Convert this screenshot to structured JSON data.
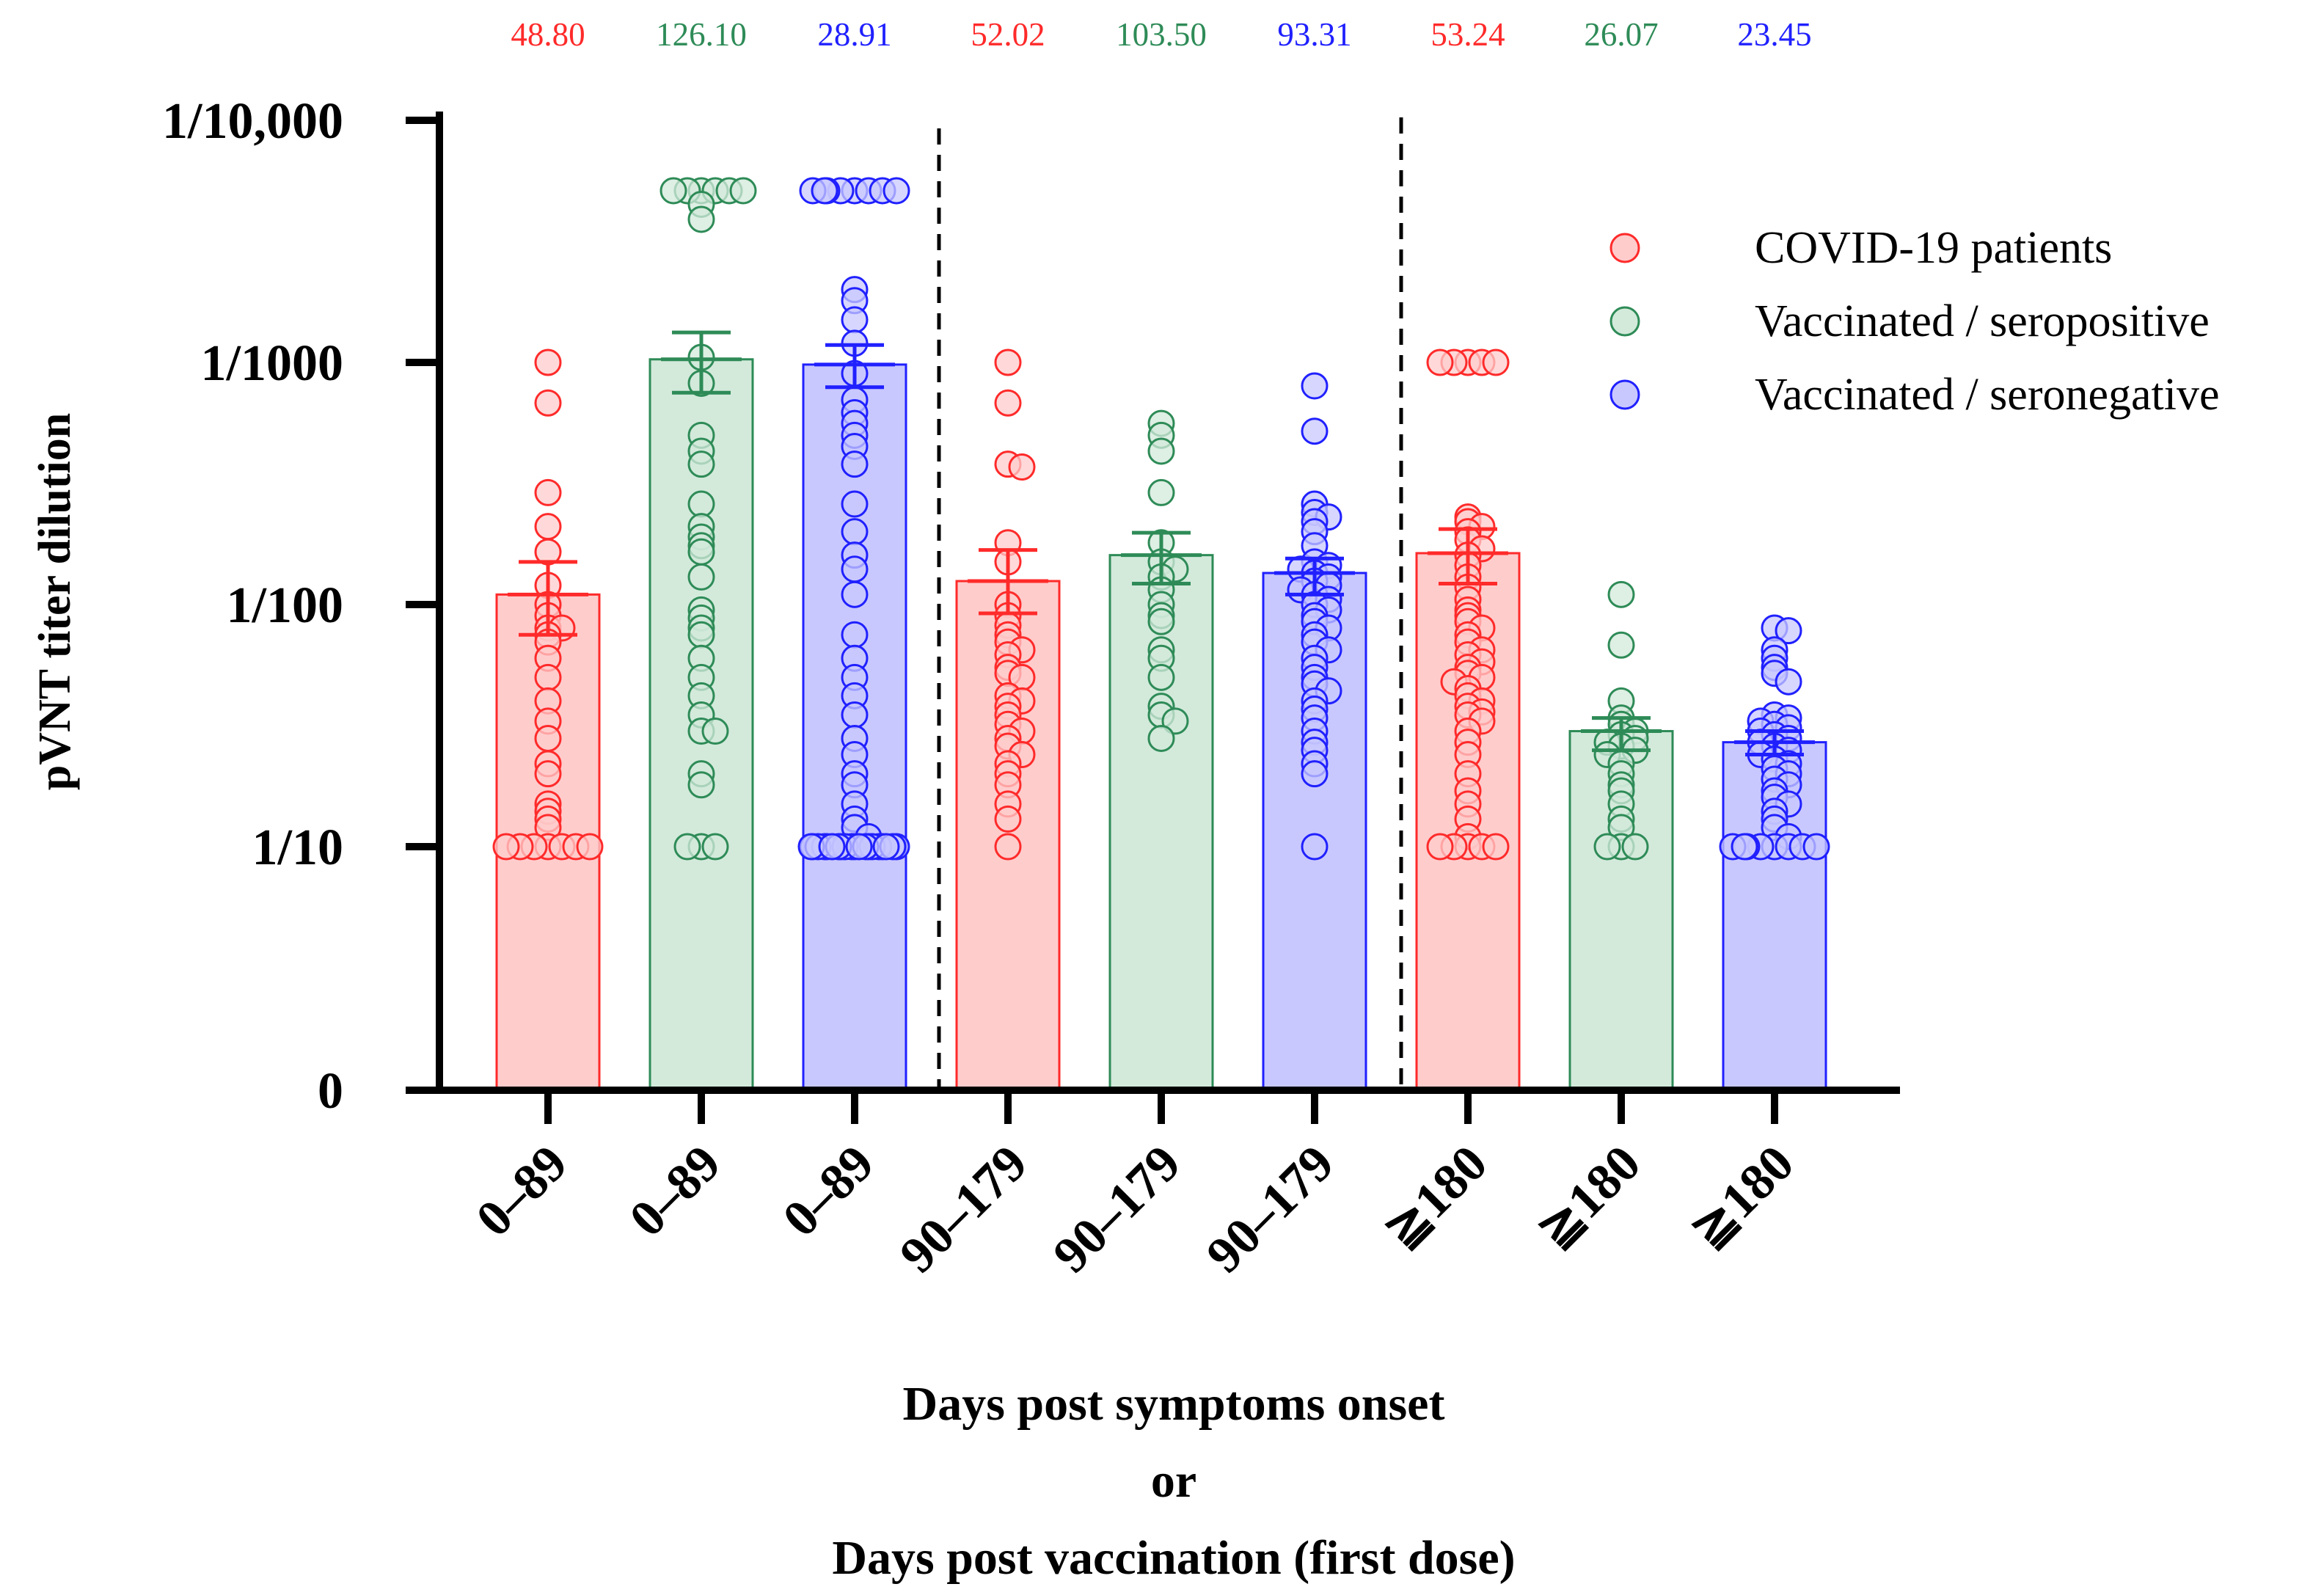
{
  "chart_data": {
    "type": "bar",
    "scale": "log",
    "ylabel": "pVNT titer dilution",
    "xlabel_lines": [
      "Days post symptoms onset",
      "or",
      "Days post vaccination (first dose)"
    ],
    "yticks": [
      {
        "value": 0,
        "label": "0"
      },
      {
        "value": 10,
        "label": "1/10"
      },
      {
        "value": 100,
        "label": "1/100"
      },
      {
        "value": 1000,
        "label": "1/1000"
      },
      {
        "value": 10000,
        "label": "1/10,000"
      }
    ],
    "colors": {
      "covid": {
        "stroke": "#ff2a2a",
        "fill": "#ffcccc"
      },
      "seropositive": {
        "stroke": "#2e8b57",
        "fill": "#d3eadb"
      },
      "seronegative": {
        "stroke": "#2020ff",
        "fill": "#c8c8ff"
      }
    },
    "legend": [
      {
        "key": "covid",
        "label": "COVID-19 patients"
      },
      {
        "key": "seropositive",
        "label": "Vaccinated / seropositive"
      },
      {
        "key": "seronegative",
        "label": "Vaccinated / seronegative"
      }
    ],
    "groups": [
      {
        "category": "0–89",
        "series": "covid",
        "geomean_label": "48.80",
        "bar": 110,
        "err_low": 75,
        "err_high": 150,
        "points": [
          1000,
          680,
          290,
          210,
          165,
          120,
          100,
          90,
          80,
          80,
          75,
          70,
          60,
          50,
          40,
          33,
          28,
          22,
          20,
          15,
          14,
          13,
          12,
          10,
          10,
          10,
          10,
          10,
          10,
          10
        ]
      },
      {
        "category": "0–89",
        "series": "seropositive",
        "geomean_label": "126.10",
        "bar": 1030,
        "err_low": 750,
        "err_high": 1330,
        "points": [
          5120,
          5120,
          5120,
          5120,
          5120,
          5120,
          4500,
          3900,
          1050,
          820,
          500,
          430,
          380,
          260,
          210,
          190,
          175,
          165,
          130,
          95,
          88,
          80,
          75,
          60,
          50,
          42,
          35,
          30,
          30,
          20,
          18,
          10,
          10,
          10
        ]
      },
      {
        "category": "0–89",
        "series": "seronegative",
        "geomean_label": "28.91",
        "bar": 980,
        "err_low": 790,
        "err_high": 1180,
        "points": [
          5120,
          5120,
          5120,
          5120,
          5120,
          5120,
          5120,
          5120,
          2000,
          1800,
          1500,
          1200,
          900,
          700,
          620,
          560,
          500,
          450,
          380,
          260,
          200,
          160,
          140,
          110,
          75,
          60,
          50,
          42,
          35,
          28,
          24,
          20,
          18,
          15,
          13,
          12,
          11,
          10,
          10,
          10,
          10,
          10,
          10,
          10,
          10,
          10,
          10,
          10,
          10,
          10,
          10,
          10,
          10,
          10,
          10,
          10,
          10
        ]
      },
      {
        "category": "90–179",
        "series": "covid",
        "geomean_label": "52.02",
        "bar": 125,
        "err_low": 92,
        "err_high": 168,
        "points": [
          1000,
          680,
          380,
          370,
          180,
          150,
          100,
          90,
          82,
          75,
          70,
          65,
          62,
          55,
          52,
          50,
          42,
          40,
          38,
          35,
          32,
          30,
          28,
          26,
          24,
          22,
          20,
          18,
          15,
          13,
          10
        ]
      },
      {
        "category": "90–179",
        "series": "seropositive",
        "geomean_label": "103.50",
        "bar": 160,
        "err_low": 122,
        "err_high": 198,
        "points": [
          560,
          500,
          430,
          290,
          180,
          150,
          140,
          130,
          115,
          100,
          90,
          85,
          65,
          60,
          50,
          38,
          35,
          33,
          28
        ]
      },
      {
        "category": "90–179",
        "series": "seronegative",
        "geomean_label": "93.31",
        "bar": 135,
        "err_low": 110,
        "err_high": 155,
        "points": [
          800,
          520,
          260,
          240,
          230,
          220,
          200,
          175,
          150,
          145,
          140,
          135,
          130,
          125,
          120,
          115,
          110,
          105,
          100,
          95,
          90,
          85,
          80,
          75,
          70,
          65,
          60,
          55,
          50,
          47,
          44,
          40,
          37,
          34,
          30,
          27,
          25,
          22,
          20,
          10
        ]
      },
      {
        "category": "≧180",
        "series": "covid",
        "geomean_label": "53.24",
        "bar": 163,
        "err_low": 122,
        "err_high": 205,
        "points": [
          1000,
          1000,
          1000,
          1000,
          1000,
          230,
          220,
          210,
          200,
          185,
          170,
          160,
          145,
          130,
          118,
          105,
          95,
          90,
          85,
          80,
          75,
          70,
          65,
          62,
          58,
          55,
          52,
          50,
          48,
          45,
          42,
          40,
          38,
          36,
          35,
          33,
          30,
          27,
          24,
          20,
          17,
          15,
          13,
          11,
          10,
          10,
          10,
          10,
          10
        ]
      },
      {
        "category": "≧180",
        "series": "seropositive",
        "geomean_label": "26.07",
        "bar": 30,
        "err_low": 25,
        "err_high": 34,
        "points": [
          110,
          68,
          40,
          34,
          32,
          30,
          29,
          28,
          27,
          26,
          25,
          24,
          22,
          20,
          18,
          17,
          15,
          13,
          12,
          10,
          10,
          10
        ]
      },
      {
        "category": "≧180",
        "series": "seronegative",
        "geomean_label": "23.45",
        "bar": 27,
        "err_low": 24,
        "err_high": 30,
        "points": [
          80,
          78,
          65,
          60,
          55,
          52,
          48,
          35,
          34,
          33,
          32,
          31,
          30,
          29,
          28,
          27,
          26,
          25,
          24,
          23,
          22,
          21,
          20,
          19,
          18,
          17,
          16,
          15,
          14,
          13,
          12,
          11,
          10,
          10,
          10,
          10,
          10,
          10,
          10,
          10
        ]
      }
    ]
  }
}
